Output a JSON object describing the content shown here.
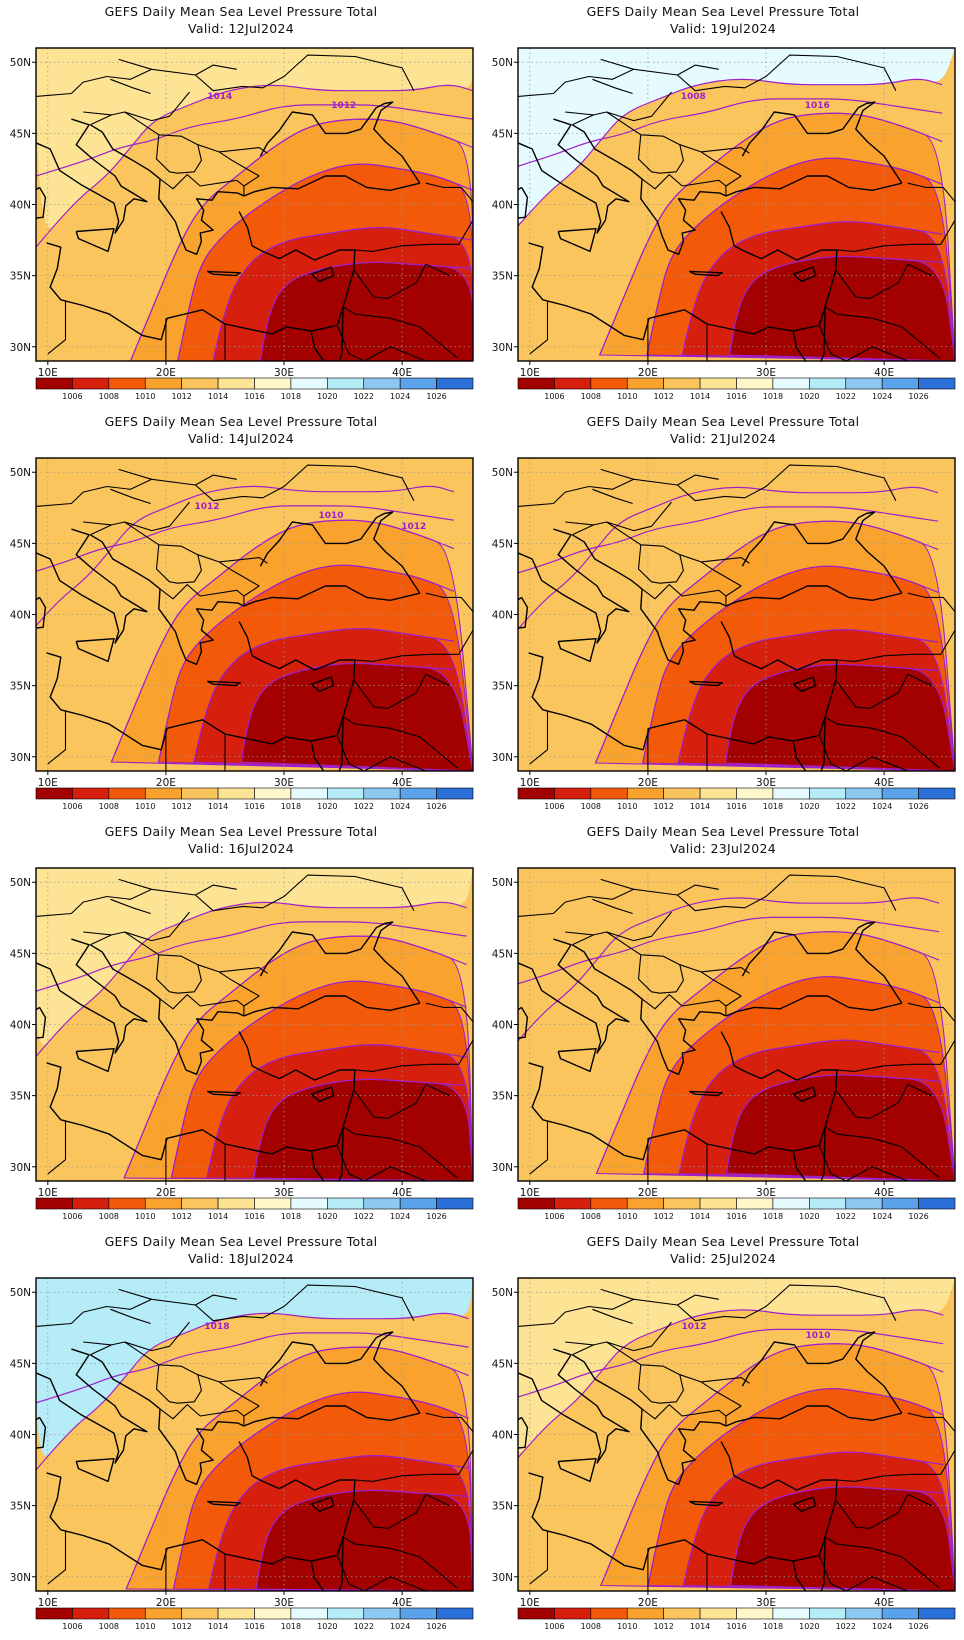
{
  "figure": {
    "title_prefix": "GEFS Daily Mean Sea Level Pressure Total",
    "valid_prefix": "Valid:"
  },
  "axes": {
    "lon_ticks": [
      "10E",
      "20E",
      "30E",
      "40E"
    ],
    "lat_ticks": [
      "50N",
      "45N",
      "40N",
      "35N",
      "30N"
    ]
  },
  "colorbar": {
    "labels": [
      "1006",
      "1008",
      "1010",
      "1012",
      "1014",
      "1016",
      "1018",
      "1020",
      "1022",
      "1024",
      "1026"
    ],
    "colors": [
      "#a30000",
      "#d61f0d",
      "#f25a0a",
      "#f9a22e",
      "#fbc55e",
      "#fde495",
      "#fff7c9",
      "#e6fbff",
      "#b6ecf8",
      "#8cc8f0",
      "#5aa3ea",
      "#2b6fd8"
    ]
  },
  "colors": {
    "contour_line": "#a020c8",
    "coast": "#000000",
    "grid": "#999999"
  },
  "panels": [
    {
      "title": "GEFS Daily Mean Sea Level Pressure Total",
      "valid": "Valid: 12Jul2024",
      "contour_labels": [
        "1014",
        "1012"
      ]
    },
    {
      "title": "GEFS Daily Mean Sea Level Pressure Total",
      "valid": "Valid: 19Jul2024",
      "contour_labels": [
        "1008",
        "1016"
      ]
    },
    {
      "title": "GEFS Daily Mean Sea Level Pressure Total",
      "valid": "Valid: 14Jul2024",
      "contour_labels": [
        "1012",
        "1010",
        "1012"
      ]
    },
    {
      "title": "GEFS Daily Mean Sea Level Pressure Total",
      "valid": "Valid: 21Jul2024",
      "contour_labels": []
    },
    {
      "title": "GEFS Daily Mean Sea Level Pressure Total",
      "valid": "Valid: 16Jul2024",
      "contour_labels": []
    },
    {
      "title": "GEFS Daily Mean Sea Level Pressure Total",
      "valid": "Valid: 23Jul2024",
      "contour_labels": []
    },
    {
      "title": "GEFS Daily Mean Sea Level Pressure Total",
      "valid": "Valid: 18Jul2024",
      "contour_labels": [
        "1018"
      ]
    },
    {
      "title": "GEFS Daily Mean Sea Level Pressure Total",
      "valid": "Valid: 25Jul2024",
      "contour_labels": [
        "1012",
        "1010"
      ]
    }
  ]
}
